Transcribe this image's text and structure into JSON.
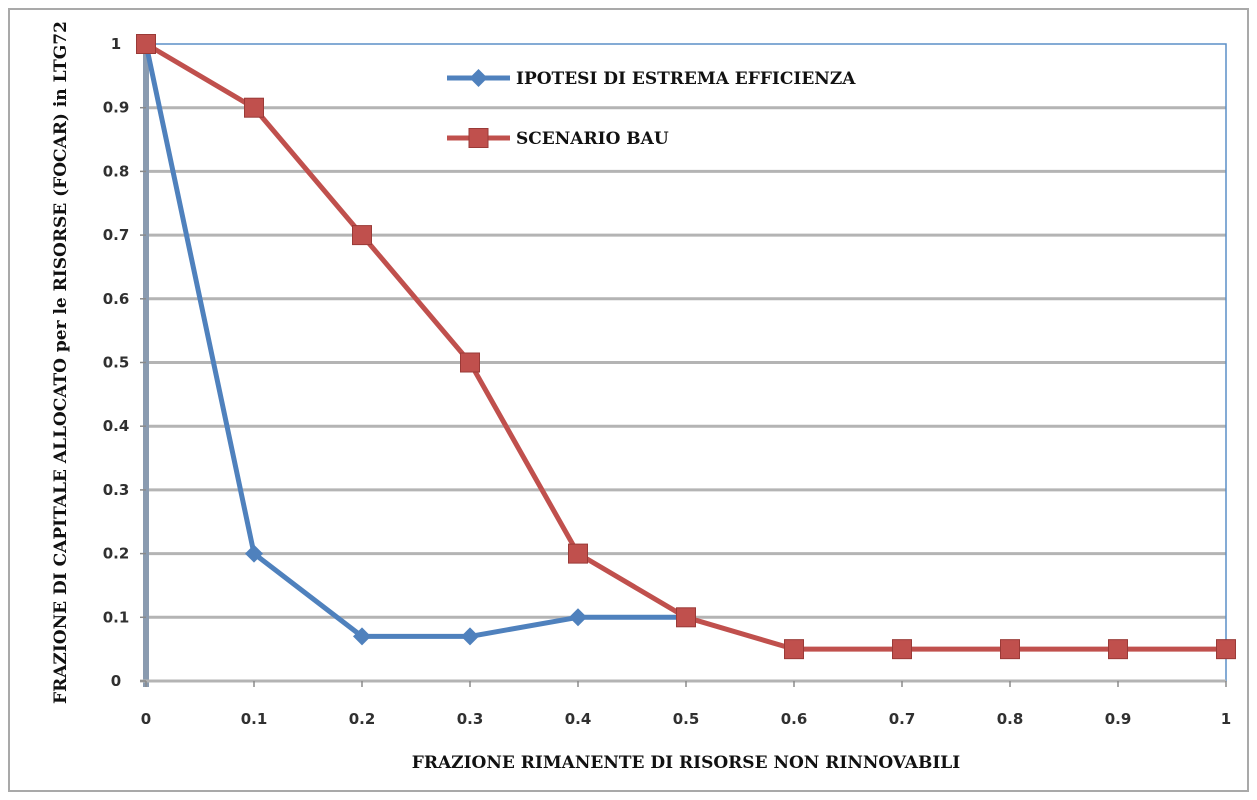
{
  "chart_data": {
    "type": "line",
    "title": "",
    "xlabel": "FRAZIONE RIMANENTE DI RISORSE NON RINNOVABILI",
    "ylabel": "FRAZIONE DI CAPITALE ALLOCATO per le RISORSE (FOCAR) in LTG72",
    "xlim": [
      0,
      1
    ],
    "ylim": [
      0,
      1
    ],
    "x_ticks": [
      "0",
      "0.1",
      "0.2",
      "0.3",
      "0.4",
      "0.5",
      "0.6",
      "0.7",
      "0.8",
      "0.9",
      "1"
    ],
    "y_ticks": [
      "0",
      "0.1",
      "0.2",
      "0.3",
      "0.4",
      "0.5",
      "0.6",
      "0.7",
      "0.8",
      "0.9",
      "1"
    ],
    "grid": "horizontal",
    "legend_position": "top-center",
    "series": [
      {
        "name": "IPOTESI DI ESTREMA EFFICIENZA",
        "color": "#4f81bd",
        "marker": "diamond",
        "x": [
          0,
          0.1,
          0.2,
          0.3,
          0.4,
          0.5
        ],
        "y": [
          1,
          0.2,
          0.07,
          0.07,
          0.1,
          0.1
        ]
      },
      {
        "name": "SCENARIO BAU",
        "color": "#c0504d",
        "marker": "square",
        "x": [
          0,
          0.1,
          0.2,
          0.3,
          0.4,
          0.5,
          0.6,
          0.7,
          0.8,
          0.9,
          1
        ],
        "y": [
          1,
          0.9,
          0.7,
          0.5,
          0.2,
          0.1,
          0.05,
          0.05,
          0.05,
          0.05,
          0.05
        ]
      }
    ]
  }
}
